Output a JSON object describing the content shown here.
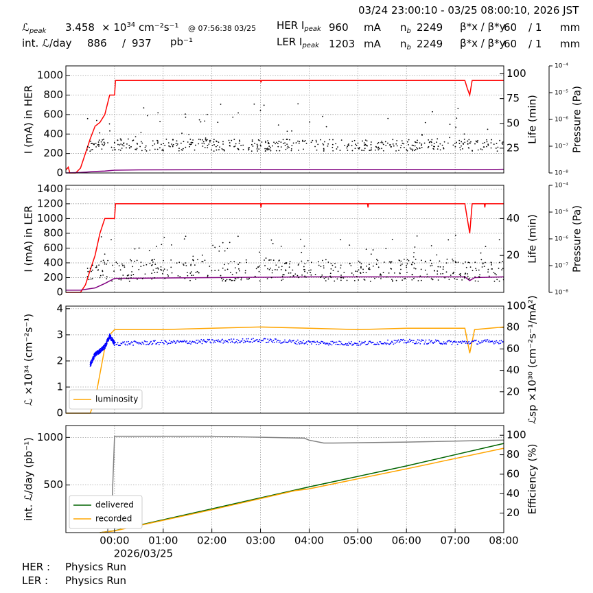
{
  "header": {
    "time_range": "03/24 23:00:10 - 03/25 08:00:10, 2026 JST",
    "lpeak_label": "ℒ",
    "lpeak_sub": "peak",
    "lpeak_value": "3.458",
    "lpeak_unit_prefix": "× 10",
    "lpeak_exp": "34",
    "lpeak_unit": "cm⁻²s⁻¹",
    "lpeak_time": "@ 07:56:38 03/25",
    "intl_label": "int. ℒ/day",
    "intl_delivered": "886",
    "intl_sep": "/",
    "intl_total": "937",
    "intl_unit": "pb⁻¹",
    "her_label": "HER I",
    "her_sub": "peak",
    "her_value": "960",
    "her_unit": "mA",
    "her_nb_label": "n",
    "her_nb_sub": "b",
    "her_nb": "2249",
    "her_beta_label": "β*x / β*y",
    "her_beta_x": "60",
    "her_beta_y": "/ 1",
    "her_beta_unit": "mm",
    "ler_label": "LER I",
    "ler_sub": "peak",
    "ler_value": "1203",
    "ler_unit": "mA",
    "ler_nb_label": "n",
    "ler_nb_sub": "b",
    "ler_nb": "2249",
    "ler_beta_label": "β*x / β*y",
    "ler_beta_x": "60",
    "ler_beta_y": "/ 1",
    "ler_beta_unit": "mm"
  },
  "footer": {
    "her_label": "HER :",
    "her_status": "Physics Run",
    "ler_label": "LER :",
    "ler_status": "Physics Run"
  },
  "colors": {
    "current": "#ff0000",
    "life": "#00ffff",
    "pressure": "#800080",
    "luminosity": "#ffa500",
    "specific": "#0000ff",
    "delivered": "#006400",
    "recorded": "#ffa500",
    "efficiency": "#808080"
  },
  "chart_data": [
    {
      "type": "line",
      "panel": "HER",
      "ylabel": "I (mA) in HER",
      "ylim": [
        0,
        1100
      ],
      "yticks": [
        0,
        200,
        400,
        600,
        800,
        1000
      ],
      "y2label": "Life (min)",
      "y2lim": [
        0,
        108
      ],
      "y2ticks": [
        25,
        50,
        75,
        100
      ],
      "y3label": "Pressure (Pa)",
      "y3ticks": [
        "10⁻⁴",
        "10⁻⁵",
        "10⁻⁶",
        "10⁻⁷",
        "10⁻⁸"
      ],
      "xlim": [
        0,
        9
      ],
      "series": [
        {
          "role": "current",
          "x": [
            0,
            0.05,
            0.08,
            0.1,
            0.2,
            0.3,
            0.4,
            0.5,
            0.6,
            0.7,
            0.8,
            0.9,
            0.95,
            1.0,
            1.02,
            4.0,
            4.01,
            4.02,
            8.2,
            8.25,
            8.3,
            8.35,
            8.4,
            9.0
          ],
          "y": [
            30,
            60,
            0,
            0,
            0,
            50,
            200,
            350,
            480,
            520,
            600,
            800,
            800,
            800,
            950,
            950,
            930,
            950,
            950,
            870,
            800,
            950,
            950,
            950
          ]
        },
        {
          "role": "pressure",
          "x": [
            0,
            0.3,
            0.6,
            0.8,
            1.0,
            1.5,
            3.0,
            5.0,
            8.2,
            8.3,
            9.0
          ],
          "y": [
            0,
            5,
            15,
            20,
            28,
            32,
            34,
            36,
            36,
            33,
            38
          ]
        },
        {
          "role": "lifetime",
          "note": "scattered points",
          "y_center": 28,
          "y_spread": 6
        }
      ]
    },
    {
      "type": "line",
      "panel": "LER",
      "ylabel": "I (mA) in LER",
      "ylim": [
        0,
        1450
      ],
      "yticks": [
        0,
        200,
        400,
        600,
        800,
        1000,
        1200,
        1400
      ],
      "y2label": "Life (min)",
      "y2lim": [
        0,
        58
      ],
      "y2ticks": [
        20,
        40
      ],
      "y3label": "Pressure (Pa)",
      "y3ticks": [
        "10⁻⁴",
        "10⁻⁵",
        "10⁻⁶",
        "10⁻⁷",
        "10⁻⁸"
      ],
      "xlim": [
        0,
        9
      ],
      "series": [
        {
          "role": "current",
          "x": [
            0,
            0.3,
            0.4,
            0.5,
            0.6,
            0.7,
            0.8,
            0.9,
            1.0,
            1.02,
            4.0,
            4.01,
            4.02,
            6.2,
            6.21,
            6.22,
            8.2,
            8.25,
            8.3,
            8.35,
            8.4,
            8.6,
            8.61,
            8.62,
            9.0
          ],
          "y": [
            0,
            0,
            100,
            300,
            500,
            800,
            1000,
            1000,
            1000,
            1200,
            1200,
            1150,
            1200,
            1200,
            1150,
            1200,
            1200,
            1000,
            800,
            1200,
            1200,
            1200,
            1150,
            1200,
            1200
          ]
        },
        {
          "role": "pressure",
          "x": [
            0,
            0.3,
            0.6,
            0.8,
            1.0,
            3.0,
            5.0,
            8.2,
            8.3,
            8.4,
            9.0
          ],
          "y": [
            30,
            30,
            60,
            120,
            190,
            200,
            210,
            210,
            160,
            200,
            210
          ]
        },
        {
          "role": "lifetime",
          "note": "scattered points",
          "y_center": 12,
          "y_spread": 6
        }
      ]
    },
    {
      "type": "line",
      "panel": "Luminosity",
      "ylabel": "ℒ ×10³⁴ (cm⁻²s⁻¹)",
      "ylim": [
        0,
        4.1
      ],
      "yticks": [
        0,
        1,
        2,
        3,
        4
      ],
      "y2label": "ℒsp ×10³⁰ (cm⁻²s⁻¹/mA²)",
      "y2lim": [
        0,
        100
      ],
      "y2ticks": [
        20,
        40,
        60,
        80,
        100
      ],
      "xlim": [
        0,
        9
      ],
      "legend": [
        "luminosity"
      ],
      "legend_position": "lower-left",
      "series": [
        {
          "name": "luminosity",
          "role": "luminosity",
          "x": [
            0,
            0.5,
            0.6,
            0.7,
            0.8,
            0.9,
            1.0,
            2.0,
            3.0,
            4.0,
            5.0,
            6.0,
            7.0,
            8.2,
            8.3,
            8.4,
            9.0
          ],
          "y": [
            0,
            0,
            0.5,
            1.5,
            2.5,
            3.0,
            3.2,
            3.2,
            3.25,
            3.3,
            3.25,
            3.2,
            3.25,
            3.25,
            2.3,
            3.2,
            3.3
          ]
        },
        {
          "role": "specific",
          "note": "scattered points",
          "x": [
            0.5,
            0.6,
            0.7,
            0.8,
            0.9,
            1.0,
            2.0,
            3.0,
            4.0,
            5.0,
            6.0,
            7.0,
            8.0,
            9.0
          ],
          "y": [
            45,
            55,
            58,
            62,
            72,
            65,
            66,
            67,
            68,
            66,
            65,
            67,
            66,
            67
          ]
        }
      ]
    },
    {
      "type": "line",
      "panel": "Integrated",
      "ylabel": "int. ℒ/day (pb⁻¹)",
      "ylim": [
        0,
        1125
      ],
      "yticks": [
        500,
        1000
      ],
      "y2label": "Efficiency (%)",
      "y2lim": [
        0,
        110
      ],
      "y2ticks": [
        20,
        40,
        60,
        80,
        100
      ],
      "xlim": [
        0,
        9
      ],
      "xticks": [
        "00:00",
        "01:00",
        "02:00",
        "03:00",
        "04:00",
        "05:00",
        "06:00",
        "07:00",
        "08:00"
      ],
      "xsublabel": "2026/03/25",
      "legend": [
        "delivered",
        "recorded"
      ],
      "legend_position": "lower-left",
      "series": [
        {
          "name": "delivered",
          "role": "delivered",
          "x": [
            0.7,
            1.0,
            3.0,
            5.0,
            7.0,
            9.0
          ],
          "y": [
            0,
            20,
            250,
            480,
            700,
            937
          ]
        },
        {
          "name": "recorded",
          "role": "recorded",
          "x": [
            0.7,
            1.0,
            3.0,
            4.7,
            5.0,
            7.0,
            9.0
          ],
          "y": [
            0,
            18,
            240,
            440,
            460,
            670,
            886
          ]
        },
        {
          "role": "efficiency",
          "x": [
            0.85,
            0.95,
            1.0,
            3.0,
            4.9,
            5.0,
            5.3,
            5.5,
            7.0,
            9.0
          ],
          "y": [
            0,
            30,
            99,
            99,
            97,
            95,
            92,
            92,
            93,
            95
          ]
        }
      ]
    }
  ]
}
